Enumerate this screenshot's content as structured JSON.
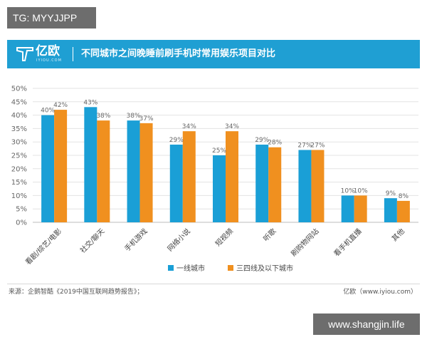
{
  "tag": "TG: MYYJJPP",
  "header": {
    "logo_text": "亿欧",
    "logo_sub": "IYIOU.COM",
    "title": "不同城市之间晚睡前刷手机时常用娱乐项目对比"
  },
  "colors": {
    "header_bg": "#1f9fd3",
    "series_1": "#1a9fd6",
    "series_2": "#f0901f",
    "grid": "#e3e3e3"
  },
  "chart_data": {
    "type": "bar",
    "categories": [
      "看剧/综艺/电影",
      "社交/聊天",
      "手机游戏",
      "网络小说",
      "短视频",
      "听歌",
      "刷购物网站",
      "看手机直播",
      "其他"
    ],
    "series": [
      {
        "name": "一线城市",
        "values": [
          40,
          43,
          38,
          29,
          25,
          29,
          27,
          10,
          9
        ]
      },
      {
        "name": "三四线及以下城市",
        "values": [
          42,
          38,
          37,
          34,
          34,
          28,
          27,
          10,
          8
        ]
      }
    ],
    "data_labels": [
      [
        "40%",
        "43%",
        "38%",
        "29%",
        "25%",
        "29%",
        "27%",
        "10%",
        "9%"
      ],
      [
        "42%",
        "38%",
        "37%",
        "34%",
        "34%",
        "28%",
        "27%",
        "10%",
        "8%"
      ]
    ],
    "y_ticks": [
      "0%",
      "5%",
      "10%",
      "15%",
      "20%",
      "25%",
      "30%",
      "35%",
      "40%",
      "45%",
      "50%"
    ],
    "ylim": [
      0,
      50
    ],
    "grid": true,
    "legend_position": "bottom-center"
  },
  "footer": {
    "source": "来源：企鹅智酷《2019中国互联网趋势报告》；",
    "brand": "亿欧（www.iyiou.com）"
  },
  "watermark": "www.shangjin.life"
}
